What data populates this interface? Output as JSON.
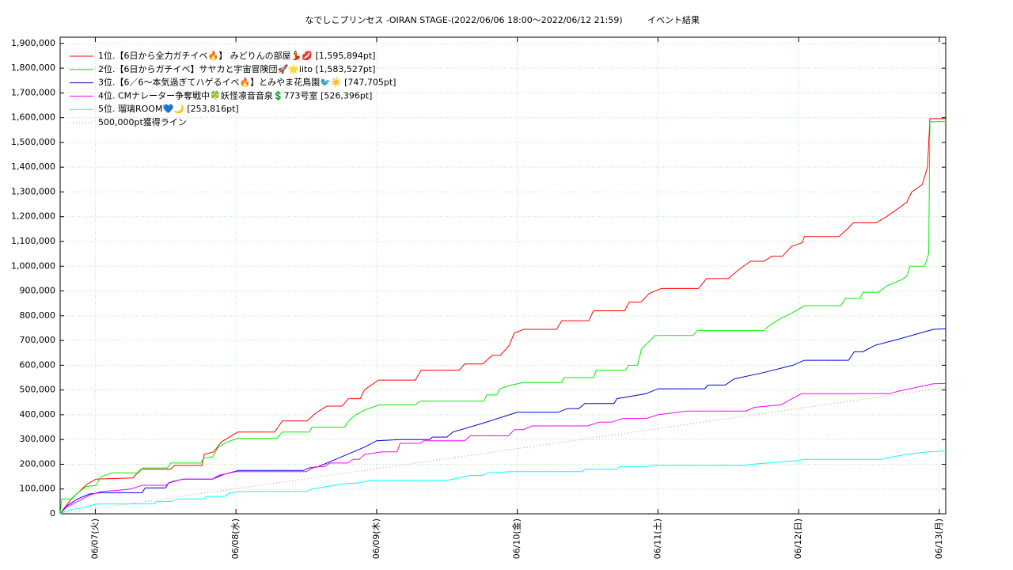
{
  "chart_data": {
    "type": "line",
    "title": "なでしこプリンセス -OIRAN STAGE-(2022/06/06 18:00～2022/06/12 21:59)",
    "subtitle": "イベント結果",
    "xlim": [
      0,
      151.1
    ],
    "xticks": [
      {
        "value": 6,
        "label": "06/07(火)"
      },
      {
        "value": 30,
        "label": "06/08(水)"
      },
      {
        "value": 54,
        "label": "06/09(木)"
      },
      {
        "value": 78,
        "label": "06/10(金)"
      },
      {
        "value": 102,
        "label": "06/11(土)"
      },
      {
        "value": 126,
        "label": "06/12(日)"
      },
      {
        "value": 150,
        "label": "06/13(月)"
      }
    ],
    "ylim": [
      0,
      1925000
    ],
    "yticks": [
      0,
      {
        "value": 100000,
        "label": "100,000"
      },
      {
        "value": 200000,
        "label": "200,000"
      },
      {
        "value": 300000,
        "label": "300,000"
      },
      {
        "value": 400000,
        "label": "400,000"
      },
      {
        "value": 500000,
        "label": "500,000"
      },
      {
        "value": 600000,
        "label": "600,000"
      },
      {
        "value": 700000,
        "label": "700,000"
      },
      {
        "value": 800000,
        "label": "800,000"
      },
      {
        "value": 900000,
        "label": "900,000"
      },
      {
        "value": 1000000,
        "label": "1,000,000"
      },
      {
        "value": 1100000,
        "label": "1,100,000"
      },
      {
        "value": 1200000,
        "label": "1,200,000"
      },
      {
        "value": 1300000,
        "label": "1,300,000"
      },
      {
        "value": 1400000,
        "label": "1,400,000"
      },
      {
        "value": 1500000,
        "label": "1,500,000"
      },
      {
        "value": 1600000,
        "label": "1,600,000"
      },
      {
        "value": 1700000,
        "label": "1,700,000"
      },
      {
        "value": 1800000,
        "label": "1,800,000"
      },
      {
        "value": 1900000,
        "label": "1,900,000"
      }
    ],
    "grid": true,
    "legend": "upper left",
    "series": [
      {
        "name": "1位.【6日から全力ガチイベ🔥】 みどりんの部屋💃💋 [1,595,894pt]",
        "color": "#ff0000",
        "x": [
          0,
          1.9,
          4.6,
          6.1,
          12.4,
          13.8,
          18.8,
          19.5,
          24.2,
          24.6,
          26.2,
          27.5,
          28.9,
          30.3,
          36.6,
          37.9,
          42.1,
          43.8,
          45.5,
          48.1,
          49.2,
          51.2,
          51.9,
          54.3,
          60.6,
          61.6,
          68.1,
          69.0,
          72.1,
          73.7,
          75.1,
          76.6,
          77.5,
          79.1,
          84.7,
          85.6,
          90.2,
          91.0,
          96.3,
          97.1,
          99.1,
          100.5,
          102.6,
          108.9,
          110.3,
          114.0,
          116.0,
          117.8,
          120.1,
          121.4,
          123.2,
          124.8,
          126.6,
          127.0,
          132.9,
          134.3,
          135.3,
          139.2,
          141.0,
          143.4,
          144.5,
          145.3,
          147.1,
          148.0,
          148.4,
          151.1
        ],
        "values": [
          0,
          60000,
          120000,
          140000,
          145000,
          180000,
          180000,
          195000,
          195000,
          240000,
          250000,
          290000,
          310000,
          330000,
          330000,
          375000,
          375000,
          410000,
          435000,
          435000,
          465000,
          465000,
          500000,
          540000,
          540000,
          580000,
          580000,
          605000,
          605000,
          640000,
          640000,
          680000,
          730000,
          745000,
          745000,
          780000,
          780000,
          820000,
          820000,
          855000,
          855000,
          890000,
          910000,
          910000,
          950000,
          950000,
          990000,
          1020000,
          1020000,
          1040000,
          1040000,
          1080000,
          1095000,
          1120000,
          1120000,
          1150000,
          1175000,
          1175000,
          1200000,
          1240000,
          1260000,
          1300000,
          1330000,
          1400000,
          1595894,
          1595894
        ]
      },
      {
        "name": "2位.【6日からガチイベ】サヤカと宇宙冒険団🚀🌟iito [1,583,527pt]",
        "color": "#00ee00",
        "x": [
          0,
          0.3,
          2,
          3,
          4.5,
          6.1,
          7,
          8.8,
          13.4,
          14,
          18.3,
          18.9,
          24,
          24.5,
          26,
          27,
          28.5,
          30.3,
          37,
          37.9,
          42.5,
          43,
          48.5,
          49.4,
          50.5,
          52,
          54.5,
          60.5,
          61.5,
          72.3,
          72.8,
          74.5,
          75,
          77,
          79,
          85.5,
          86,
          91,
          91.5,
          96.5,
          97,
          98.5,
          99.2,
          100.2,
          101.5,
          108,
          108.7,
          120,
          121,
          123,
          124.8,
          127,
          133.2,
          134,
          136.5,
          137,
          139.7,
          141,
          143.5,
          144.5,
          145,
          147.5,
          148.2,
          148.4,
          151.1
        ],
        "values": [
          0,
          60000,
          60000,
          85000,
          110000,
          115000,
          150000,
          165000,
          165000,
          185000,
          185000,
          205000,
          205000,
          225000,
          230000,
          270000,
          290000,
          305000,
          305000,
          330000,
          330000,
          350000,
          350000,
          380000,
          400000,
          420000,
          440000,
          440000,
          455000,
          455000,
          480000,
          480000,
          505000,
          520000,
          530000,
          530000,
          550000,
          550000,
          580000,
          580000,
          600000,
          600000,
          665000,
          690000,
          720000,
          720000,
          740000,
          740000,
          760000,
          790000,
          810000,
          840000,
          840000,
          870000,
          870000,
          895000,
          895000,
          920000,
          945000,
          960000,
          1000000,
          1000000,
          1050000,
          1583527,
          1583527
        ]
      },
      {
        "name": "3位.【6／6〜本気過ぎてハゲるイベ🔥】とみやま花鳥園🐦☀️ [747,705pt]",
        "color": "#0000dd",
        "x": [
          0,
          1,
          3,
          5,
          7,
          14,
          14.5,
          18,
          18.5,
          21,
          26,
          28,
          30.5,
          41.5,
          42.5,
          44,
          47,
          50,
          52,
          54,
          58,
          63,
          63.5,
          66,
          67,
          72,
          76,
          78,
          85,
          86.5,
          88.5,
          89.5,
          94.5,
          95,
          100,
          102,
          110,
          110.5,
          113.5,
          115,
          120,
          125,
          127,
          134.5,
          135.5,
          137,
          139,
          143,
          149,
          151.1
        ],
        "values": [
          0,
          30000,
          60000,
          80000,
          85000,
          85000,
          105000,
          105000,
          125000,
          140000,
          140000,
          160000,
          175000,
          175000,
          185000,
          190000,
          220000,
          250000,
          270000,
          295000,
          300000,
          300000,
          310000,
          310000,
          330000,
          365000,
          395000,
          410000,
          410000,
          425000,
          425000,
          445000,
          445000,
          465000,
          485000,
          505000,
          505000,
          520000,
          520000,
          545000,
          570000,
          600000,
          620000,
          620000,
          655000,
          655000,
          680000,
          705000,
          745000,
          747705
        ]
      },
      {
        "name": "4位. CMナレーター争奪戦中🍀妖怪凛音音泉💲773号室 [526,396pt]",
        "color": "#ff00ff",
        "x": [
          0,
          1,
          3,
          5,
          7,
          10,
          12,
          14,
          18,
          19,
          21,
          26,
          27,
          30,
          42,
          43.5,
          45,
          46,
          49,
          50,
          51,
          52,
          55,
          57.5,
          58,
          61.5,
          62,
          69,
          70,
          76.5,
          77.5,
          79,
          80.5,
          90,
          92,
          94,
          96,
          100,
          102,
          107,
          117,
          118.5,
          123,
          124.5,
          126.5,
          141.5,
          143,
          146,
          149,
          151.1
        ],
        "values": [
          0,
          25000,
          50000,
          75000,
          90000,
          95000,
          100000,
          115000,
          115000,
          130000,
          140000,
          140000,
          155000,
          170000,
          170000,
          190000,
          190000,
          205000,
          205000,
          220000,
          220000,
          240000,
          250000,
          250000,
          285000,
          285000,
          295000,
          295000,
          315000,
          315000,
          340000,
          340000,
          355000,
          355000,
          370000,
          370000,
          385000,
          385000,
          400000,
          415000,
          415000,
          430000,
          440000,
          460000,
          485000,
          485000,
          495000,
          510000,
          525000,
          526396
        ]
      },
      {
        "name": "5位. 瑠璃ROOM💙🌙 [253,816pt]",
        "color": "#00ffff",
        "x": [
          0,
          1.5,
          4,
          5.5,
          6.5,
          16,
          16.5,
          19,
          20,
          24.5,
          25,
          28,
          29,
          31,
          42,
          43,
          45.5,
          48,
          51,
          53,
          66,
          68,
          70,
          72,
          73,
          77,
          89,
          89.5,
          95,
          95.5,
          100,
          101,
          117,
          118,
          126,
          127,
          140,
          142,
          144.5,
          148,
          151.1
        ],
        "values": [
          0,
          15000,
          25000,
          35000,
          40000,
          40000,
          50000,
          50000,
          60000,
          60000,
          70000,
          70000,
          85000,
          90000,
          90000,
          100000,
          110000,
          120000,
          125000,
          135000,
          135000,
          145000,
          155000,
          155000,
          165000,
          170000,
          170000,
          180000,
          180000,
          190000,
          190000,
          195000,
          195000,
          200000,
          215000,
          220000,
          220000,
          230000,
          240000,
          250000,
          253816
        ]
      },
      {
        "name": "500,000pt獲得ライン",
        "color": "#e08080",
        "style": "dotted",
        "x": [
          0,
          151.1
        ],
        "values": [
          0,
          510000
        ]
      }
    ]
  }
}
